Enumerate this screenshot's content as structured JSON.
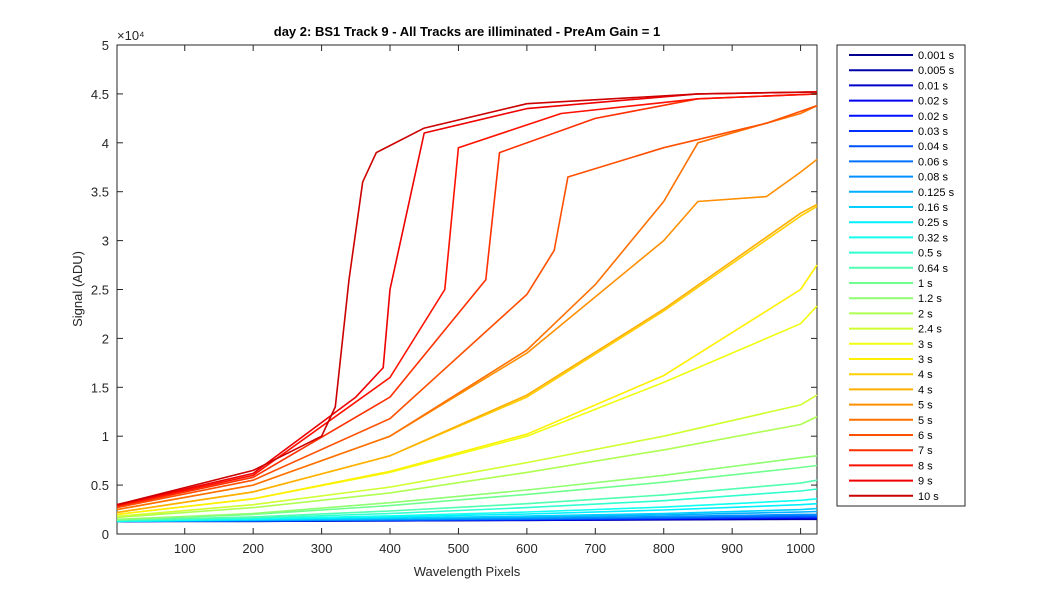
{
  "chart_data": {
    "type": "line",
    "title": "day 2: BS1  Track 9 - All Tracks are illiminated - PreAm Gain = 1",
    "xlabel": "Wavelength Pixels",
    "ylabel": "Signal (ADU)",
    "y_exponent_label": "×10⁴",
    "xlim": [
      1,
      1024
    ],
    "ylim": [
      0,
      5
    ],
    "x_ticks": [
      100,
      200,
      300,
      400,
      500,
      600,
      700,
      800,
      900,
      1000
    ],
    "y_ticks": [
      0,
      0.5,
      1,
      1.5,
      2,
      2.5,
      3,
      3.5,
      4,
      4.5,
      5
    ],
    "y_units": "x 10^4 ADU",
    "grid": false,
    "legend_position": "outside-right",
    "series": [
      {
        "name": "0.001 s",
        "color": "#00008f",
        "x": [
          1,
          200,
          400,
          600,
          800,
          1000,
          1024
        ],
        "y": [
          0.13,
          0.13,
          0.135,
          0.14,
          0.145,
          0.15,
          0.15
        ]
      },
      {
        "name": "0.005 s",
        "color": "#0000ab",
        "x": [
          1,
          200,
          400,
          600,
          800,
          1000,
          1024
        ],
        "y": [
          0.13,
          0.13,
          0.135,
          0.14,
          0.148,
          0.155,
          0.155
        ]
      },
      {
        "name": "0.01 s",
        "color": "#0000cc",
        "x": [
          1,
          200,
          400,
          600,
          800,
          1000,
          1024
        ],
        "y": [
          0.13,
          0.132,
          0.137,
          0.143,
          0.15,
          0.16,
          0.16
        ]
      },
      {
        "name": "0.02 s",
        "color": "#0000ef",
        "x": [
          1,
          200,
          400,
          600,
          800,
          1000,
          1024
        ],
        "y": [
          0.13,
          0.133,
          0.138,
          0.145,
          0.153,
          0.165,
          0.165
        ]
      },
      {
        "name": "0.02 s",
        "color": "#0010ff",
        "x": [
          1,
          200,
          400,
          600,
          800,
          1000,
          1024
        ],
        "y": [
          0.13,
          0.133,
          0.139,
          0.146,
          0.155,
          0.168,
          0.168
        ]
      },
      {
        "name": "0.03 s",
        "color": "#0030ff",
        "x": [
          1,
          200,
          400,
          600,
          800,
          1000,
          1024
        ],
        "y": [
          0.13,
          0.134,
          0.14,
          0.148,
          0.158,
          0.172,
          0.172
        ]
      },
      {
        "name": "0.04 s",
        "color": "#0050ff",
        "x": [
          1,
          200,
          400,
          600,
          800,
          1000,
          1024
        ],
        "y": [
          0.13,
          0.135,
          0.142,
          0.15,
          0.162,
          0.178,
          0.18
        ]
      },
      {
        "name": "0.06 s",
        "color": "#0070ff",
        "x": [
          1,
          200,
          400,
          600,
          800,
          1000,
          1024
        ],
        "y": [
          0.13,
          0.137,
          0.145,
          0.155,
          0.17,
          0.19,
          0.19
        ]
      },
      {
        "name": "0.08 s",
        "color": "#008fff",
        "x": [
          1,
          200,
          400,
          600,
          800,
          1000,
          1024
        ],
        "y": [
          0.13,
          0.138,
          0.148,
          0.16,
          0.178,
          0.2,
          0.2
        ]
      },
      {
        "name": "0.125 s",
        "color": "#00afff",
        "x": [
          1,
          200,
          400,
          600,
          800,
          1000,
          1024
        ],
        "y": [
          0.13,
          0.142,
          0.155,
          0.172,
          0.195,
          0.225,
          0.23
        ]
      },
      {
        "name": "0.16 s",
        "color": "#00cfff",
        "x": [
          1,
          200,
          400,
          600,
          800,
          1000,
          1024
        ],
        "y": [
          0.13,
          0.145,
          0.162,
          0.183,
          0.21,
          0.25,
          0.26
        ]
      },
      {
        "name": "0.25 s",
        "color": "#00efff",
        "x": [
          1,
          200,
          400,
          600,
          800,
          1000,
          1024
        ],
        "y": [
          0.13,
          0.15,
          0.175,
          0.205,
          0.245,
          0.3,
          0.31
        ]
      },
      {
        "name": "0.32 s",
        "color": "#10ffef",
        "x": [
          1,
          200,
          400,
          600,
          800,
          1000,
          1024
        ],
        "y": [
          0.13,
          0.155,
          0.185,
          0.225,
          0.275,
          0.345,
          0.36
        ]
      },
      {
        "name": "0.5 s",
        "color": "#30ffcf",
        "x": [
          1,
          200,
          400,
          600,
          800,
          1000,
          1024
        ],
        "y": [
          0.14,
          0.165,
          0.21,
          0.27,
          0.34,
          0.44,
          0.46
        ]
      },
      {
        "name": "0.64 s",
        "color": "#50ffaf",
        "x": [
          1,
          200,
          400,
          600,
          800,
          1000,
          1024
        ],
        "y": [
          0.14,
          0.175,
          0.235,
          0.31,
          0.4,
          0.52,
          0.55
        ]
      },
      {
        "name": "1 s",
        "color": "#70ff8f",
        "x": [
          1,
          200,
          400,
          600,
          800,
          1000,
          1024
        ],
        "y": [
          0.145,
          0.2,
          0.29,
          0.405,
          0.53,
          0.68,
          0.7
        ]
      },
      {
        "name": "1.2 s",
        "color": "#8fff70",
        "x": [
          1,
          200,
          400,
          600,
          800,
          1000,
          1024
        ],
        "y": [
          0.15,
          0.21,
          0.32,
          0.45,
          0.6,
          0.78,
          0.8
        ]
      },
      {
        "name": "2 s",
        "color": "#afff50",
        "x": [
          1,
          200,
          400,
          600,
          800,
          1000,
          1024
        ],
        "y": [
          0.17,
          0.27,
          0.42,
          0.63,
          0.86,
          1.12,
          1.2
        ]
      },
      {
        "name": "2.4 s",
        "color": "#cfff30",
        "x": [
          1,
          200,
          400,
          600,
          800,
          1000,
          1024
        ],
        "y": [
          0.18,
          0.3,
          0.48,
          0.73,
          1.0,
          1.32,
          1.42
        ]
      },
      {
        "name": "3 s",
        "color": "#efff10",
        "x": [
          1,
          200,
          400,
          600,
          800,
          1000,
          1024
        ],
        "y": [
          0.2,
          0.36,
          0.63,
          1.0,
          1.55,
          2.15,
          2.33
        ]
      },
      {
        "name": "3 s",
        "color": "#ffef00",
        "x": [
          1,
          200,
          400,
          600,
          800,
          1000,
          1024
        ],
        "y": [
          0.2,
          0.36,
          0.64,
          1.02,
          1.62,
          2.5,
          2.75
        ]
      },
      {
        "name": "4 s",
        "color": "#ffcf00",
        "x": [
          1,
          200,
          400,
          600,
          800,
          1000,
          1024
        ],
        "y": [
          0.22,
          0.43,
          0.8,
          1.4,
          2.28,
          3.25,
          3.35
        ]
      },
      {
        "name": "4 s",
        "color": "#ffaf00",
        "x": [
          1,
          200,
          400,
          600,
          800,
          1000,
          1024
        ],
        "y": [
          0.22,
          0.43,
          0.8,
          1.42,
          2.3,
          3.28,
          3.37
        ]
      },
      {
        "name": "5 s",
        "color": "#ff8f00",
        "x": [
          1,
          200,
          400,
          600,
          800,
          850,
          950,
          1000,
          1024
        ],
        "y": [
          0.25,
          0.5,
          1.0,
          1.85,
          3.0,
          3.4,
          3.45,
          3.7,
          3.83
        ]
      },
      {
        "name": "5 s",
        "color": "#ff7000",
        "x": [
          1,
          200,
          400,
          600,
          700,
          800,
          850,
          950,
          1000,
          1024
        ],
        "y": [
          0.25,
          0.5,
          1.0,
          1.88,
          2.55,
          3.4,
          4.0,
          4.2,
          4.3,
          4.38
        ]
      },
      {
        "name": "6 s",
        "color": "#ff5000",
        "x": [
          1,
          200,
          400,
          600,
          640,
          660,
          800,
          950,
          1024
        ],
        "y": [
          0.27,
          0.55,
          1.18,
          2.45,
          2.9,
          3.65,
          3.95,
          4.2,
          4.38
        ]
      },
      {
        "name": "7 s",
        "color": "#ff3000",
        "x": [
          1,
          200,
          400,
          540,
          560,
          700,
          850,
          1024
        ],
        "y": [
          0.28,
          0.58,
          1.4,
          2.6,
          3.9,
          4.25,
          4.45,
          4.5
        ]
      },
      {
        "name": "8 s",
        "color": "#ff1000",
        "x": [
          1,
          200,
          400,
          480,
          500,
          650,
          850,
          1024
        ],
        "y": [
          0.29,
          0.6,
          1.6,
          2.5,
          3.95,
          4.3,
          4.45,
          4.5
        ]
      },
      {
        "name": "9 s",
        "color": "#ef0000",
        "x": [
          1,
          200,
          350,
          390,
          400,
          450,
          600,
          850,
          1024
        ],
        "y": [
          0.3,
          0.62,
          1.4,
          1.7,
          2.5,
          4.1,
          4.35,
          4.5,
          4.52
        ]
      },
      {
        "name": "10 s",
        "color": "#cc0000",
        "x": [
          1,
          200,
          300,
          320,
          340,
          360,
          380,
          450,
          600,
          850,
          1024
        ],
        "y": [
          0.3,
          0.65,
          1.0,
          1.3,
          2.6,
          3.6,
          3.9,
          4.15,
          4.4,
          4.5,
          4.52
        ]
      }
    ]
  }
}
